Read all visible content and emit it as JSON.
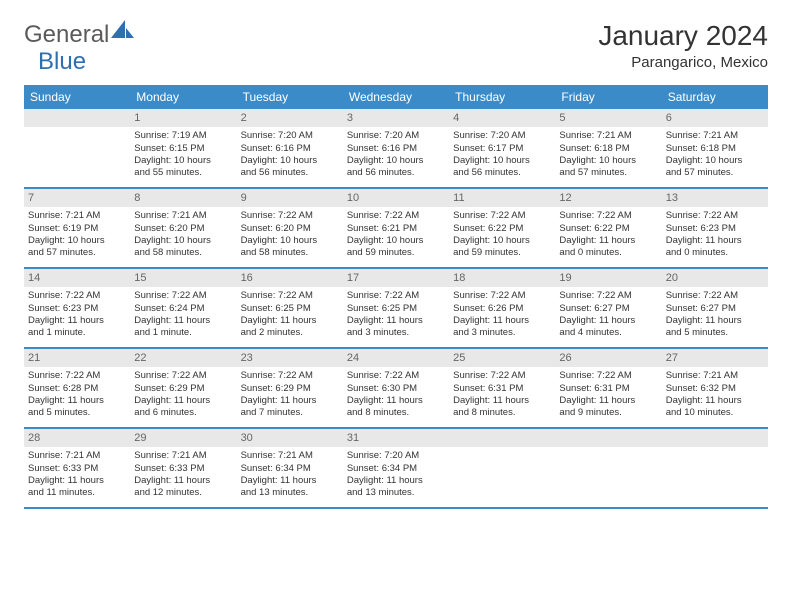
{
  "logo": {
    "text1": "General",
    "text2": "Blue"
  },
  "title": "January 2024",
  "location": "Parangarico, Mexico",
  "colors": {
    "header_bg": "#3b8bc9",
    "daynum_bg": "#e8e8e8",
    "text": "#333333",
    "logo_gray": "#5a5a5a",
    "logo_blue": "#2d6fb0"
  },
  "weekdays": [
    "Sunday",
    "Monday",
    "Tuesday",
    "Wednesday",
    "Thursday",
    "Friday",
    "Saturday"
  ],
  "weeks": [
    [
      null,
      {
        "n": "1",
        "sr": "Sunrise: 7:19 AM",
        "ss": "Sunset: 6:15 PM",
        "d1": "Daylight: 10 hours",
        "d2": "and 55 minutes."
      },
      {
        "n": "2",
        "sr": "Sunrise: 7:20 AM",
        "ss": "Sunset: 6:16 PM",
        "d1": "Daylight: 10 hours",
        "d2": "and 56 minutes."
      },
      {
        "n": "3",
        "sr": "Sunrise: 7:20 AM",
        "ss": "Sunset: 6:16 PM",
        "d1": "Daylight: 10 hours",
        "d2": "and 56 minutes."
      },
      {
        "n": "4",
        "sr": "Sunrise: 7:20 AM",
        "ss": "Sunset: 6:17 PM",
        "d1": "Daylight: 10 hours",
        "d2": "and 56 minutes."
      },
      {
        "n": "5",
        "sr": "Sunrise: 7:21 AM",
        "ss": "Sunset: 6:18 PM",
        "d1": "Daylight: 10 hours",
        "d2": "and 57 minutes."
      },
      {
        "n": "6",
        "sr": "Sunrise: 7:21 AM",
        "ss": "Sunset: 6:18 PM",
        "d1": "Daylight: 10 hours",
        "d2": "and 57 minutes."
      }
    ],
    [
      {
        "n": "7",
        "sr": "Sunrise: 7:21 AM",
        "ss": "Sunset: 6:19 PM",
        "d1": "Daylight: 10 hours",
        "d2": "and 57 minutes."
      },
      {
        "n": "8",
        "sr": "Sunrise: 7:21 AM",
        "ss": "Sunset: 6:20 PM",
        "d1": "Daylight: 10 hours",
        "d2": "and 58 minutes."
      },
      {
        "n": "9",
        "sr": "Sunrise: 7:22 AM",
        "ss": "Sunset: 6:20 PM",
        "d1": "Daylight: 10 hours",
        "d2": "and 58 minutes."
      },
      {
        "n": "10",
        "sr": "Sunrise: 7:22 AM",
        "ss": "Sunset: 6:21 PM",
        "d1": "Daylight: 10 hours",
        "d2": "and 59 minutes."
      },
      {
        "n": "11",
        "sr": "Sunrise: 7:22 AM",
        "ss": "Sunset: 6:22 PM",
        "d1": "Daylight: 10 hours",
        "d2": "and 59 minutes."
      },
      {
        "n": "12",
        "sr": "Sunrise: 7:22 AM",
        "ss": "Sunset: 6:22 PM",
        "d1": "Daylight: 11 hours",
        "d2": "and 0 minutes."
      },
      {
        "n": "13",
        "sr": "Sunrise: 7:22 AM",
        "ss": "Sunset: 6:23 PM",
        "d1": "Daylight: 11 hours",
        "d2": "and 0 minutes."
      }
    ],
    [
      {
        "n": "14",
        "sr": "Sunrise: 7:22 AM",
        "ss": "Sunset: 6:23 PM",
        "d1": "Daylight: 11 hours",
        "d2": "and 1 minute."
      },
      {
        "n": "15",
        "sr": "Sunrise: 7:22 AM",
        "ss": "Sunset: 6:24 PM",
        "d1": "Daylight: 11 hours",
        "d2": "and 1 minute."
      },
      {
        "n": "16",
        "sr": "Sunrise: 7:22 AM",
        "ss": "Sunset: 6:25 PM",
        "d1": "Daylight: 11 hours",
        "d2": "and 2 minutes."
      },
      {
        "n": "17",
        "sr": "Sunrise: 7:22 AM",
        "ss": "Sunset: 6:25 PM",
        "d1": "Daylight: 11 hours",
        "d2": "and 3 minutes."
      },
      {
        "n": "18",
        "sr": "Sunrise: 7:22 AM",
        "ss": "Sunset: 6:26 PM",
        "d1": "Daylight: 11 hours",
        "d2": "and 3 minutes."
      },
      {
        "n": "19",
        "sr": "Sunrise: 7:22 AM",
        "ss": "Sunset: 6:27 PM",
        "d1": "Daylight: 11 hours",
        "d2": "and 4 minutes."
      },
      {
        "n": "20",
        "sr": "Sunrise: 7:22 AM",
        "ss": "Sunset: 6:27 PM",
        "d1": "Daylight: 11 hours",
        "d2": "and 5 minutes."
      }
    ],
    [
      {
        "n": "21",
        "sr": "Sunrise: 7:22 AM",
        "ss": "Sunset: 6:28 PM",
        "d1": "Daylight: 11 hours",
        "d2": "and 5 minutes."
      },
      {
        "n": "22",
        "sr": "Sunrise: 7:22 AM",
        "ss": "Sunset: 6:29 PM",
        "d1": "Daylight: 11 hours",
        "d2": "and 6 minutes."
      },
      {
        "n": "23",
        "sr": "Sunrise: 7:22 AM",
        "ss": "Sunset: 6:29 PM",
        "d1": "Daylight: 11 hours",
        "d2": "and 7 minutes."
      },
      {
        "n": "24",
        "sr": "Sunrise: 7:22 AM",
        "ss": "Sunset: 6:30 PM",
        "d1": "Daylight: 11 hours",
        "d2": "and 8 minutes."
      },
      {
        "n": "25",
        "sr": "Sunrise: 7:22 AM",
        "ss": "Sunset: 6:31 PM",
        "d1": "Daylight: 11 hours",
        "d2": "and 8 minutes."
      },
      {
        "n": "26",
        "sr": "Sunrise: 7:22 AM",
        "ss": "Sunset: 6:31 PM",
        "d1": "Daylight: 11 hours",
        "d2": "and 9 minutes."
      },
      {
        "n": "27",
        "sr": "Sunrise: 7:21 AM",
        "ss": "Sunset: 6:32 PM",
        "d1": "Daylight: 11 hours",
        "d2": "and 10 minutes."
      }
    ],
    [
      {
        "n": "28",
        "sr": "Sunrise: 7:21 AM",
        "ss": "Sunset: 6:33 PM",
        "d1": "Daylight: 11 hours",
        "d2": "and 11 minutes."
      },
      {
        "n": "29",
        "sr": "Sunrise: 7:21 AM",
        "ss": "Sunset: 6:33 PM",
        "d1": "Daylight: 11 hours",
        "d2": "and 12 minutes."
      },
      {
        "n": "30",
        "sr": "Sunrise: 7:21 AM",
        "ss": "Sunset: 6:34 PM",
        "d1": "Daylight: 11 hours",
        "d2": "and 13 minutes."
      },
      {
        "n": "31",
        "sr": "Sunrise: 7:20 AM",
        "ss": "Sunset: 6:34 PM",
        "d1": "Daylight: 11 hours",
        "d2": "and 13 minutes."
      },
      null,
      null,
      null
    ]
  ]
}
